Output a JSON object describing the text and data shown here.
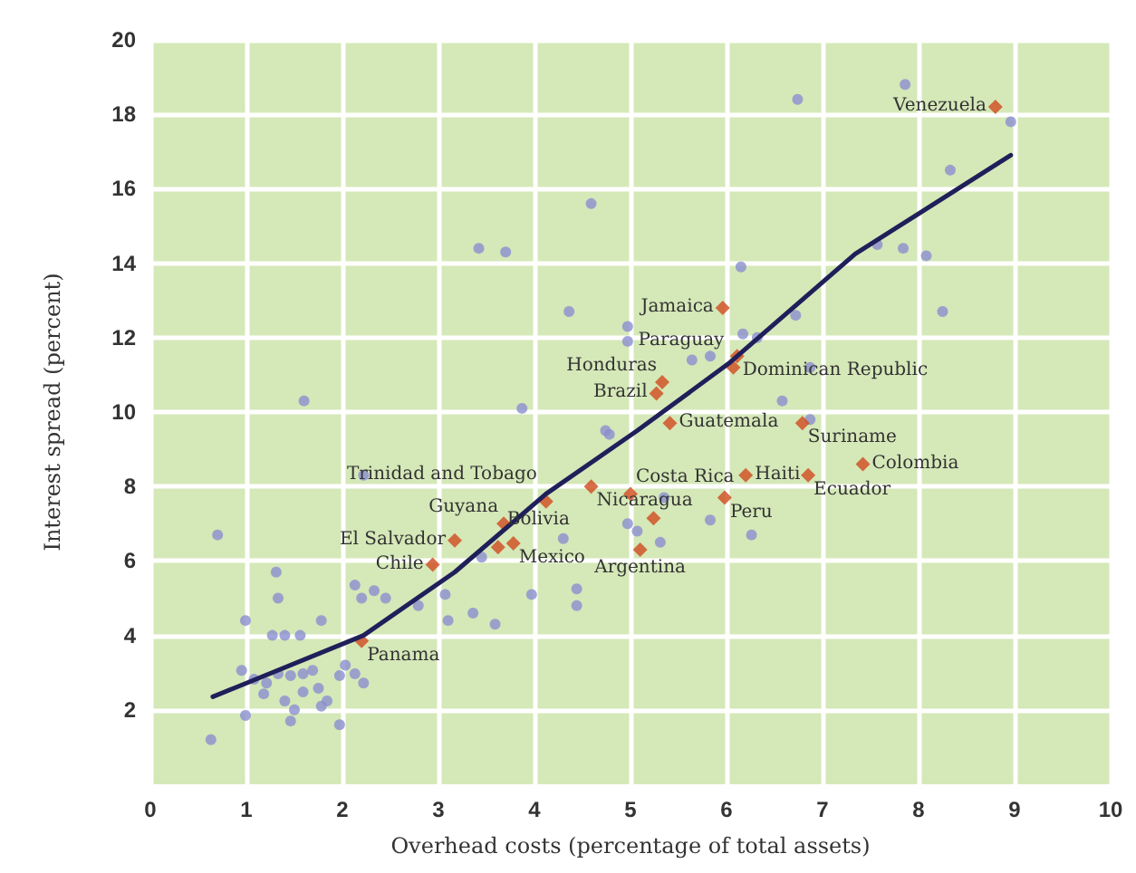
{
  "chart_data": {
    "type": "scatter",
    "xlabel": "Overhead costs (percentage of total assets)",
    "ylabel": "Interest spread (percent)",
    "xlim": [
      0,
      10
    ],
    "xticks": [
      0,
      1,
      2,
      3,
      4,
      5,
      6,
      7,
      8,
      9,
      10
    ],
    "ylim": [
      0,
      20
    ],
    "yticks": [
      2,
      4,
      6,
      8,
      10,
      12,
      14,
      16,
      18,
      20
    ],
    "grid": true,
    "marker": "circle",
    "series": [
      {
        "type": "scatter",
        "color": "#8a8fd0",
        "x": [
          1.6,
          3.87,
          4.78,
          0.7,
          1.31,
          1.33,
          0.99,
          1.27,
          1.4,
          1.56,
          1.78,
          2.13,
          2.2,
          2.33,
          2.45,
          2.79,
          3.07,
          3.1,
          3.36,
          3.59,
          3.45,
          3.97,
          4.44,
          4.44,
          4.3,
          2.22,
          2.03,
          2.13,
          2.22,
          1.97,
          0.95,
          1.08,
          1.21,
          1.33,
          1.46,
          1.59,
          1.69,
          1.18,
          1.4,
          1.59,
          1.75,
          1.84,
          0.99,
          1.46,
          1.78,
          1.97,
          1.5,
          0.63,
          4.74,
          5.64,
          5.83,
          6.58,
          6.87,
          6.87,
          5.35,
          5.83,
          6.26,
          5.31,
          4.97,
          5.07,
          6.74,
          7.86,
          8.96,
          8.33,
          7.57,
          7.84,
          8.08,
          8.25,
          6.72,
          6.15,
          6.17,
          6.32,
          4.97,
          4.97,
          4.59,
          3.42,
          3.7,
          4.36
        ],
        "values": [
          10.3,
          10.1,
          9.4,
          6.7,
          5.7,
          5.0,
          4.4,
          4.0,
          4.0,
          4.0,
          4.4,
          5.35,
          5.0,
          5.2,
          5.0,
          4.8,
          5.1,
          4.4,
          4.6,
          4.3,
          6.1,
          5.1,
          5.25,
          4.8,
          6.6,
          8.3,
          3.2,
          2.97,
          2.72,
          2.92,
          3.06,
          2.82,
          2.72,
          2.97,
          2.92,
          2.97,
          3.06,
          2.43,
          2.24,
          2.48,
          2.58,
          2.24,
          1.85,
          1.7,
          2.1,
          1.6,
          2.0,
          1.2,
          9.5,
          11.4,
          11.5,
          10.3,
          11.2,
          9.8,
          7.7,
          7.1,
          6.7,
          6.5,
          7.0,
          6.8,
          18.4,
          18.8,
          17.8,
          16.5,
          14.5,
          14.4,
          14.2,
          12.7,
          12.6,
          13.9,
          12.1,
          12.0,
          12.3,
          11.9,
          15.6,
          14.4,
          14.3,
          12.7
        ]
      },
      {
        "type": "scatter",
        "color": "#cf4a1e",
        "marker": "diamond",
        "x": [
          8.8,
          5.96,
          6.11,
          6.07,
          5.33,
          5.27,
          5.41,
          6.79,
          6.2,
          7.42,
          6.85,
          5.0,
          5.24,
          5.98,
          5.1,
          4.59,
          4.12,
          3.68,
          3.17,
          3.78,
          3.62,
          2.94,
          2.2
        ],
        "values": [
          18.2,
          12.8,
          11.5,
          11.2,
          10.8,
          10.5,
          9.7,
          9.7,
          8.3,
          8.6,
          8.3,
          7.8,
          7.15,
          7.7,
          6.3,
          8.0,
          7.6,
          7.0,
          6.55,
          6.47,
          6.37,
          5.9,
          3.85
        ]
      },
      {
        "type": "line",
        "color": "#1f1f5a",
        "marker": "none",
        "line_style": "solid",
        "x": [
          0.65,
          2.22,
          3.17,
          4.12,
          5.07,
          6.02,
          7.34,
          8.96
        ],
        "values": [
          2.35,
          4.0,
          5.7,
          7.8,
          9.5,
          11.3,
          14.25,
          16.9
        ]
      }
    ],
    "annotations": [
      {
        "text": "Venezuela",
        "x": 8.8,
        "y": 18.2
      },
      {
        "text": "Jamaica",
        "x": 5.96,
        "y": 12.8
      },
      {
        "text": "Dominican Republic",
        "x": 6.11,
        "y": 11.5
      },
      {
        "text": "Paraguay",
        "x": 6.07,
        "y": 11.2
      },
      {
        "text": "Honduras",
        "x": 5.33,
        "y": 10.8
      },
      {
        "text": "Brazil",
        "x": 5.27,
        "y": 10.5
      },
      {
        "text": "Guatemala",
        "x": 5.41,
        "y": 9.7
      },
      {
        "text": "Suriname",
        "x": 6.79,
        "y": 9.7
      },
      {
        "text": "Haiti",
        "x": 6.2,
        "y": 8.3
      },
      {
        "text": "Colombia",
        "x": 7.42,
        "y": 8.6
      },
      {
        "text": "Ecuador",
        "x": 6.85,
        "y": 8.3
      },
      {
        "text": "Costa Rica",
        "x": 5.0,
        "y": 7.8
      },
      {
        "text": "Peru",
        "x": 5.98,
        "y": 7.7
      },
      {
        "text": "Argentina",
        "x": 5.1,
        "y": 6.3
      },
      {
        "text": "Nicaragua",
        "x": 4.59,
        "y": 8.0
      },
      {
        "text": "Trinidad and Tobago",
        "x": 4.12,
        "y": 7.6
      },
      {
        "text": "Guyana",
        "x": 3.68,
        "y": 7.0
      },
      {
        "text": "El Salvador",
        "x": 3.17,
        "y": 6.55
      },
      {
        "text": "Mexico",
        "x": 3.78,
        "y": 6.47
      },
      {
        "text": "Bolivia",
        "x": 3.62,
        "y": 6.37
      },
      {
        "text": "Chile",
        "x": 2.94,
        "y": 5.9
      },
      {
        "text": "Panama",
        "x": 2.2,
        "y": 3.85
      }
    ]
  }
}
